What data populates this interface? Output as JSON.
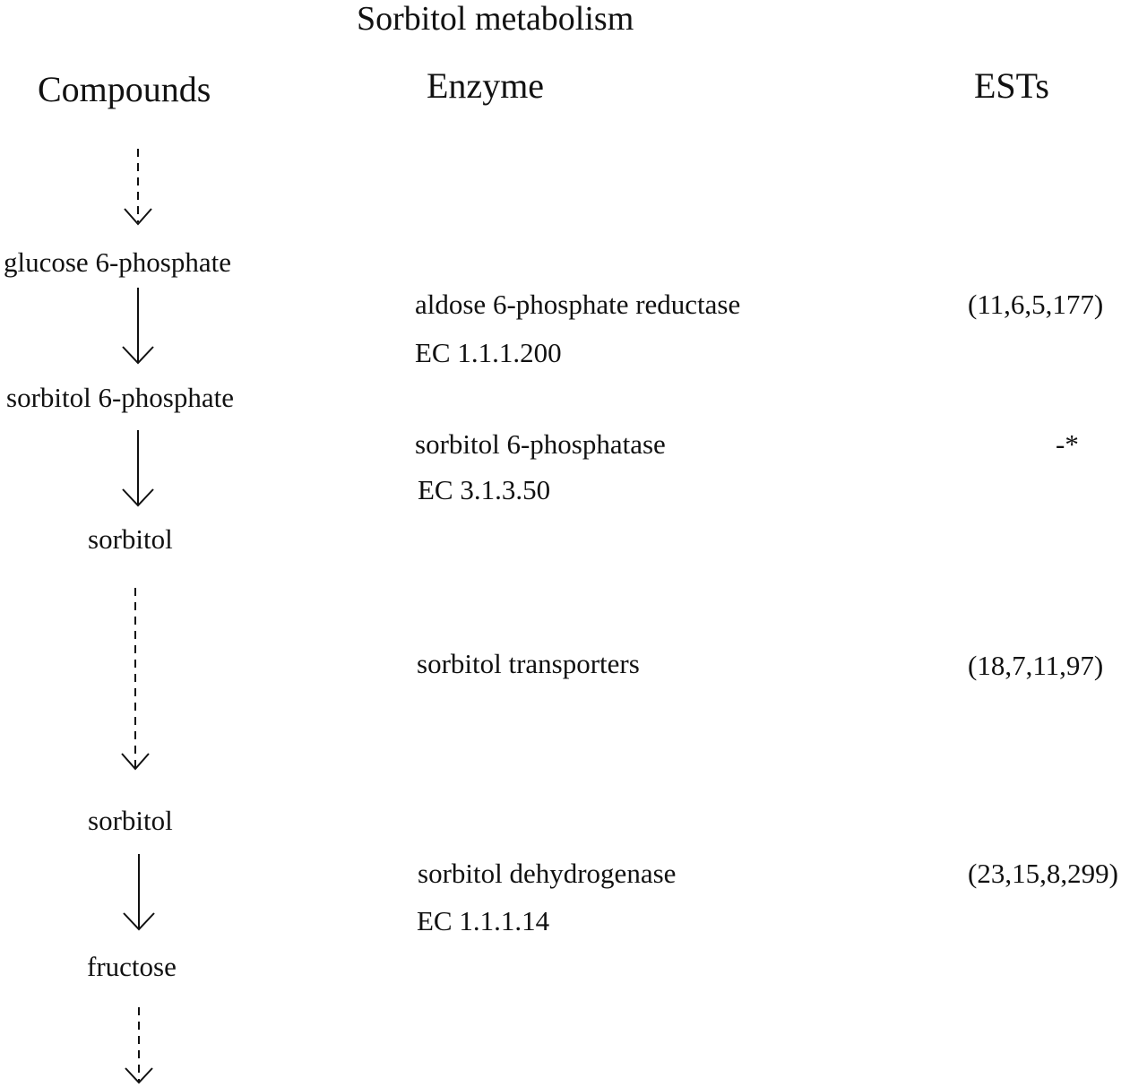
{
  "title": "Sorbitol metabolism",
  "columns": {
    "compounds": "Compounds",
    "enzyme": "Enzyme",
    "ests": "ESTs"
  },
  "compounds": [
    "glucose 6-phosphate",
    "sorbitol 6-phosphate",
    "sorbitol",
    "sorbitol",
    "fructose"
  ],
  "steps": [
    {
      "enzyme": "aldose 6-phosphate reductase",
      "ec": "EC 1.1.1.200",
      "ests": "(11,6,5,177)"
    },
    {
      "enzyme": "sorbitol 6-phosphatase",
      "ec": "EC 3.1.3.50",
      "ests": "-*"
    },
    {
      "enzyme": "sorbitol transporters",
      "ests": "(18,7,11,97)"
    },
    {
      "enzyme": "sorbitol dehydrogenase",
      "ec": "EC 1.1.1.14",
      "ests": "(23,15,8,299)"
    }
  ],
  "arrows": [
    {
      "from": "start",
      "to": "glucose 6-phosphate",
      "style": "dashed"
    },
    {
      "from": "glucose 6-phosphate",
      "to": "sorbitol 6-phosphate",
      "style": "solid"
    },
    {
      "from": "sorbitol 6-phosphate",
      "to": "sorbitol",
      "style": "solid"
    },
    {
      "from": "sorbitol",
      "to": "sorbitol",
      "style": "dashed"
    },
    {
      "from": "sorbitol",
      "to": "fructose",
      "style": "solid"
    },
    {
      "from": "fructose",
      "to": "end",
      "style": "dashed"
    }
  ]
}
